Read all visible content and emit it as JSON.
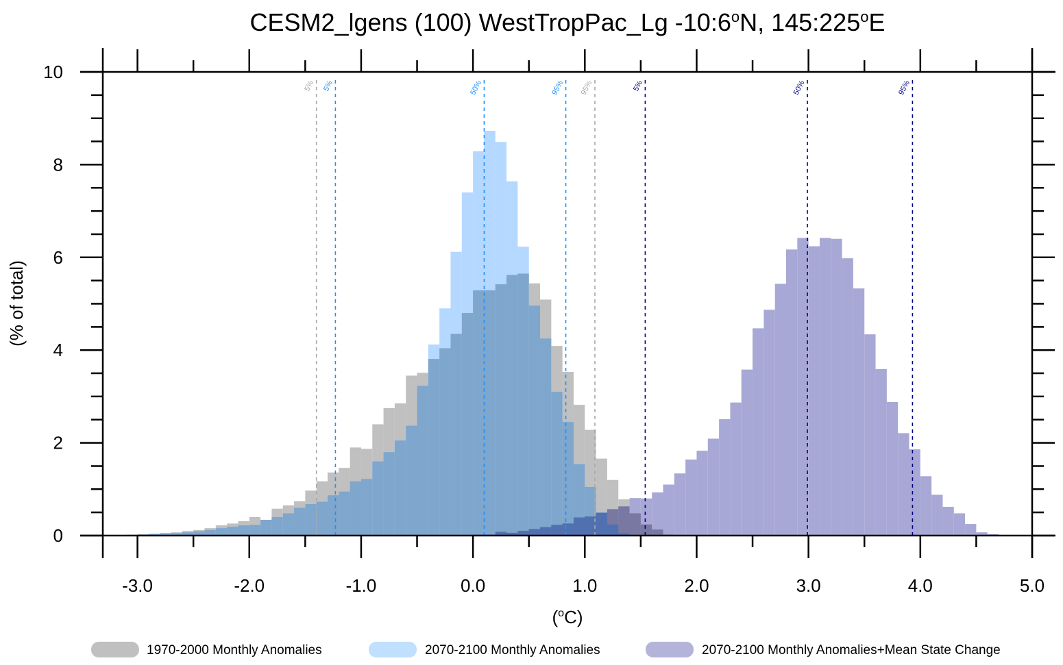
{
  "chart_data": {
    "type": "bar",
    "subtype": "overlapping-histogram",
    "title_parts": [
      "CESM2_lgens (100) WestTropPac_Lg  -10:6",
      "o",
      "N, 145:225",
      "o",
      "E"
    ],
    "xlabel_parts": [
      "(",
      "o",
      "C)"
    ],
    "ylabel": "(% of total)",
    "xlim": [
      -3.31,
      5.0
    ],
    "ylim": [
      0,
      10
    ],
    "xticks": [
      -3.0,
      -2.0,
      -1.0,
      0.0,
      1.0,
      2.0,
      3.0,
      4.0,
      5.0
    ],
    "xtick_labels": [
      "-3.0",
      "-2.0",
      "-1.0",
      "0.0",
      "1.0",
      "2.0",
      "3.0",
      "4.0",
      "5.0"
    ],
    "yticks": [
      0,
      2,
      4,
      6,
      8,
      10
    ],
    "ytick_labels": [
      "0",
      "2",
      "4",
      "6",
      "8",
      "10"
    ],
    "bin_width": 0.1,
    "series": [
      {
        "name": "1970-2000 Monthly Anomalies",
        "color": "#c0c0c0",
        "x_start": -3.2,
        "values": [
          0.01,
          0.02,
          0.03,
          0.04,
          0.06,
          0.07,
          0.1,
          0.12,
          0.16,
          0.22,
          0.26,
          0.31,
          0.4,
          0.34,
          0.58,
          0.65,
          0.74,
          0.97,
          1.17,
          1.36,
          1.46,
          1.9,
          1.87,
          2.4,
          2.75,
          2.85,
          3.45,
          3.51,
          3.81,
          4.04,
          4.35,
          4.8,
          5.29,
          5.29,
          5.42,
          5.62,
          5.65,
          5.44,
          5.09,
          4.09,
          3.53,
          2.82,
          2.28,
          1.66,
          1.2,
          0.78,
          0.48,
          0.24,
          0.13,
          0.02,
          0.01
        ]
      },
      {
        "name": "2070-2100 Monthly Anomalies",
        "color": "#b4d8ff",
        "x_start": -3.2,
        "values": [
          0.01,
          0.01,
          0.02,
          0.03,
          0.04,
          0.05,
          0.07,
          0.09,
          0.12,
          0.16,
          0.19,
          0.22,
          0.23,
          0.34,
          0.4,
          0.48,
          0.6,
          0.68,
          0.73,
          0.87,
          0.95,
          1.17,
          1.22,
          1.6,
          1.8,
          2.05,
          2.37,
          3.23,
          4.12,
          4.9,
          6.12,
          7.4,
          8.29,
          8.73,
          8.49,
          7.64,
          6.23,
          4.96,
          4.25,
          3.1,
          2.45,
          1.54,
          1.05,
          0.5,
          0.24,
          0.05,
          0.01
        ]
      },
      {
        "name": "2070-2100 Monthly Anomalies+Mean State Change",
        "color": "#a8a8d6",
        "x_start": 0.0,
        "values": [
          0.02,
          0.02,
          0.08,
          0.06,
          0.1,
          0.14,
          0.18,
          0.23,
          0.26,
          0.39,
          0.41,
          0.49,
          0.57,
          0.63,
          0.81,
          0.8,
          0.93,
          1.1,
          1.34,
          1.64,
          1.83,
          2.09,
          2.51,
          2.87,
          3.58,
          4.47,
          4.87,
          5.43,
          6.17,
          6.42,
          6.24,
          6.42,
          6.4,
          5.98,
          5.33,
          4.34,
          3.59,
          2.88,
          2.21,
          1.86,
          1.28,
          0.88,
          0.62,
          0.48,
          0.25,
          0.07,
          0.03,
          0.01
        ]
      }
    ],
    "overlap_colors": {
      "gray_blue": "#7fa6cc",
      "gray_purple": "#7878a2",
      "blue_purple": "#5070b0"
    },
    "percentiles": [
      {
        "label": "5%",
        "x": -1.4,
        "color": "#a8a8a8"
      },
      {
        "label": "95%",
        "x": 1.09,
        "color": "#a8a8a8"
      },
      {
        "label": "5%",
        "x": -1.23,
        "color": "#1e90ff"
      },
      {
        "label": "50%",
        "x": 0.1,
        "color": "#1e90ff"
      },
      {
        "label": "95%",
        "x": 0.83,
        "color": "#1e90ff"
      },
      {
        "label": "5%",
        "x": 1.54,
        "color": "#000080"
      },
      {
        "label": "50%",
        "x": 2.99,
        "color": "#000080"
      },
      {
        "label": "95%",
        "x": 3.93,
        "color": "#000080"
      }
    ],
    "legend_placement": "bottom"
  }
}
